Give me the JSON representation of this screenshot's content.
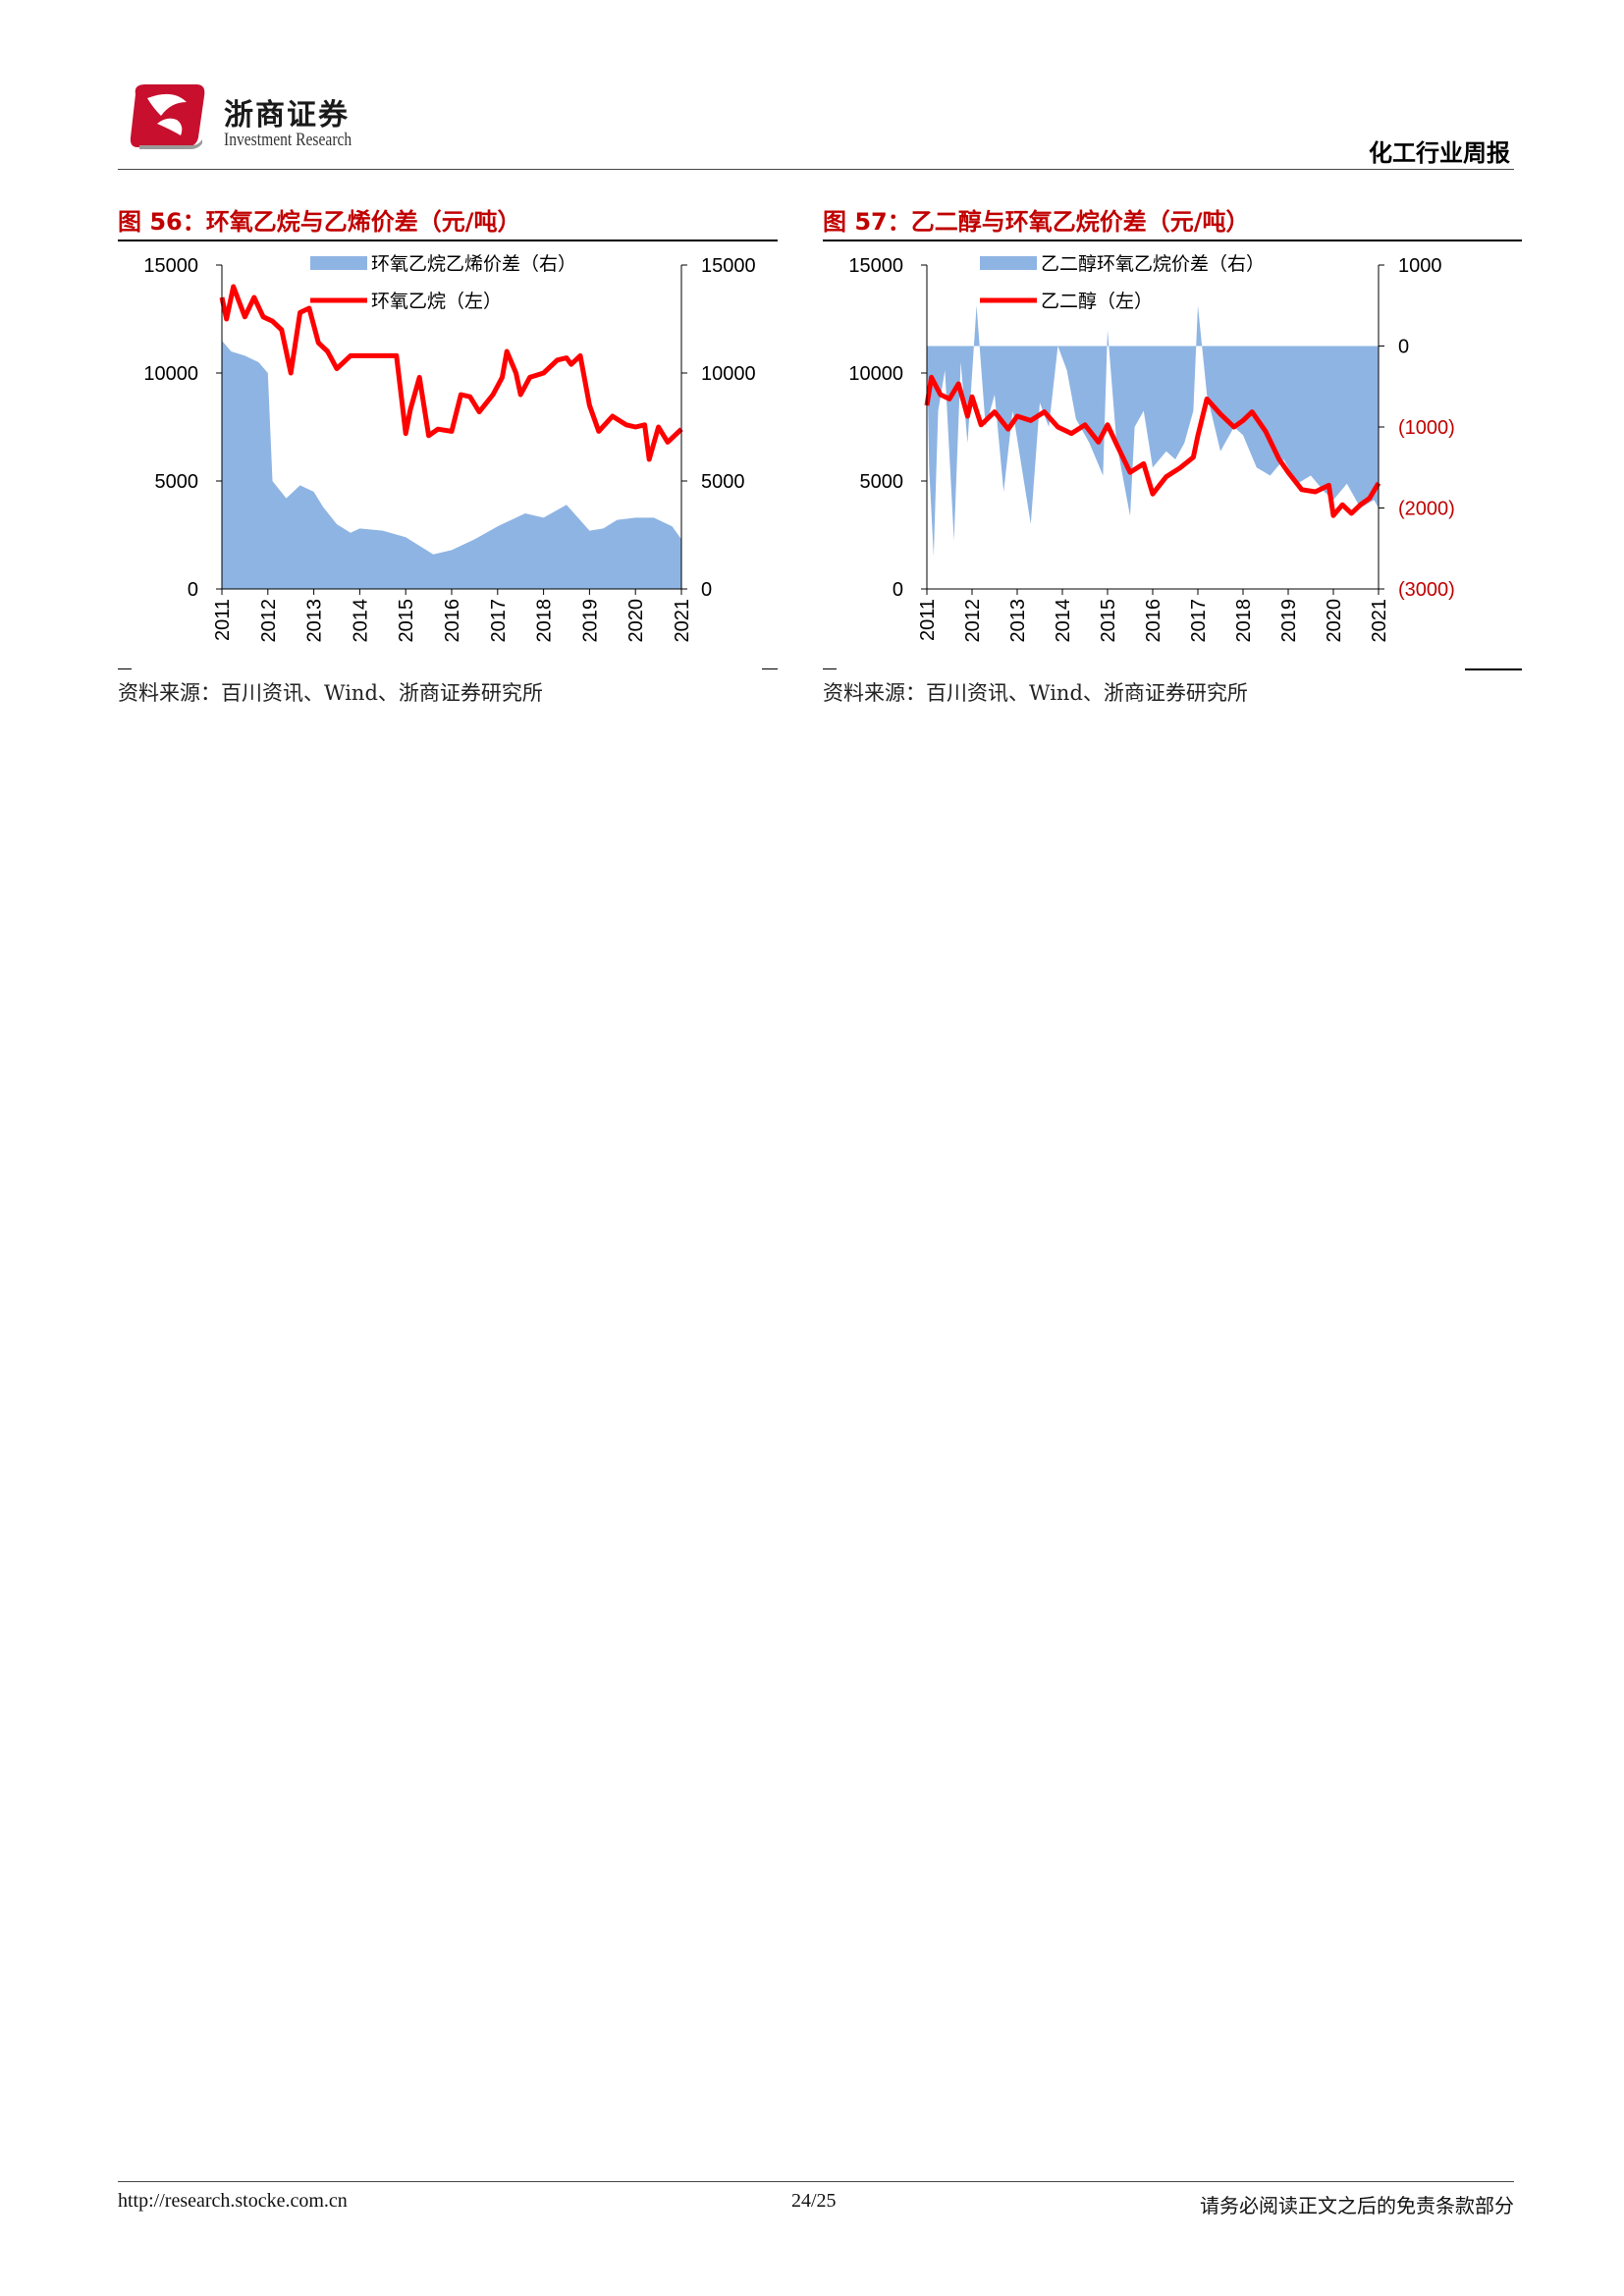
{
  "header": {
    "brand_cn": "浙商证券",
    "brand_en": "Investment Research",
    "report_type": "化工行业周报",
    "logo_color": "#c8102e"
  },
  "figures": [
    {
      "title": "图 56：环氧乙烷与乙烯价差（元/吨）",
      "source": "资料来源：百川资讯、Wind、浙商证券研究所",
      "chart_data": {
        "type": "area+line",
        "x_ticks": [
          "2011",
          "2012",
          "2013",
          "2014",
          "2015",
          "2016",
          "2017",
          "2018",
          "2019",
          "2020",
          "2021"
        ],
        "left_axis": {
          "ticks": [
            "15000",
            "10000",
            "5000",
            "0"
          ],
          "ylim": [
            0,
            15000
          ]
        },
        "right_axis": {
          "ticks": [
            "15000",
            "10000",
            "5000",
            "0"
          ],
          "ylim": [
            0,
            15000
          ]
        },
        "legend_position": "top-center",
        "series": [
          {
            "name": "环氧乙烷乙烯价差（右）",
            "kind": "area",
            "axis": "right",
            "color": "#8eb4e3",
            "x": [
              2011.0,
              2011.2,
              2011.5,
              2011.8,
              2012.0,
              2012.1,
              2012.4,
              2012.7,
              2013.0,
              2013.2,
              2013.5,
              2013.8,
              2014.0,
              2014.5,
              2015.0,
              2015.3,
              2015.6,
              2016.0,
              2016.5,
              2017.0,
              2017.3,
              2017.6,
              2018.0,
              2018.5,
              2019.0,
              2019.3,
              2019.6,
              2020.0,
              2020.4,
              2020.8,
              2021.0
            ],
            "values": [
              11500,
              11000,
              10800,
              10500,
              10000,
              5000,
              4200,
              4800,
              4500,
              3800,
              3000,
              2600,
              2800,
              2700,
              2400,
              2000,
              1600,
              1800,
              2300,
              2900,
              3200,
              3500,
              3300,
              3900,
              2700,
              2800,
              3200,
              3300,
              3300,
              2900,
              2300
            ]
          },
          {
            "name": "环氧乙烷（左）",
            "kind": "line",
            "axis": "left",
            "color": "#ff0000",
            "x": [
              2011.0,
              2011.1,
              2011.25,
              2011.5,
              2011.7,
              2011.9,
              2012.1,
              2012.3,
              2012.5,
              2012.7,
              2012.9,
              2013.1,
              2013.3,
              2013.5,
              2013.8,
              2014.1,
              2014.4,
              2014.8,
              2015.0,
              2015.1,
              2015.3,
              2015.5,
              2015.7,
              2016.0,
              2016.2,
              2016.4,
              2016.6,
              2016.9,
              2017.1,
              2017.2,
              2017.4,
              2017.5,
              2017.7,
              2018.0,
              2018.3,
              2018.5,
              2018.6,
              2018.8,
              2019.0,
              2019.2,
              2019.5,
              2019.8,
              2020.0,
              2020.2,
              2020.3,
              2020.5,
              2020.7,
              2021.0
            ],
            "values": [
              13500,
              12500,
              14000,
              12600,
              13500,
              12600,
              12400,
              12000,
              10000,
              12800,
              13000,
              11400,
              11000,
              10200,
              10800,
              10800,
              10800,
              10800,
              7200,
              8300,
              9800,
              7100,
              7400,
              7300,
              9000,
              8900,
              8200,
              9000,
              9800,
              11000,
              10000,
              9000,
              9800,
              10000,
              10600,
              10700,
              10400,
              10800,
              8500,
              7300,
              8000,
              7600,
              7500,
              7600,
              6000,
              7500,
              6800,
              7400
            ]
          }
        ]
      }
    },
    {
      "title": "图 57：乙二醇与环氧乙烷价差（元/吨）",
      "source": "资料来源：百川资讯、Wind、浙商证券研究所",
      "chart_data": {
        "type": "area+line",
        "x_ticks": [
          "2011",
          "2012",
          "2013",
          "2014",
          "2015",
          "2016",
          "2017",
          "2018",
          "2019",
          "2020",
          "2021"
        ],
        "left_axis": {
          "ticks": [
            "15000",
            "10000",
            "5000",
            "0"
          ],
          "ylim": [
            0,
            15000
          ]
        },
        "right_axis": {
          "ticks": [
            "1000",
            "0",
            "(1000)",
            "(2000)",
            "(3000)"
          ],
          "ylim": [
            -3000,
            1000
          ],
          "negative_color": "#c00000"
        },
        "legend_position": "top-center",
        "series": [
          {
            "name": "乙二醇环氧乙烷价差（右）",
            "kind": "area",
            "axis": "right",
            "color": "#8eb4e3",
            "x": [
              2011.0,
              2011.05,
              2011.15,
              2011.25,
              2011.4,
              2011.6,
              2011.75,
              2011.9,
              2012.1,
              2012.3,
              2012.5,
              2012.7,
              2012.9,
              2013.1,
              2013.3,
              2013.5,
              2013.7,
              2013.9,
              2014.1,
              2014.3,
              2014.6,
              2014.9,
              2015.0,
              2015.2,
              2015.5,
              2015.6,
              2015.8,
              2016.0,
              2016.3,
              2016.5,
              2016.7,
              2016.9,
              2017.0,
              2017.2,
              2017.5,
              2017.8,
              2018.0,
              2018.3,
              2018.6,
              2018.9,
              2019.2,
              2019.5,
              2019.8,
              2020.0,
              2020.3,
              2020.6,
              2020.9,
              2021.0
            ],
            "values": [
              0,
              -1500,
              -2600,
              -800,
              -300,
              -2400,
              -200,
              -1200,
              500,
              -1000,
              -600,
              -1800,
              -800,
              -1500,
              -2200,
              -700,
              -1000,
              0,
              -300,
              -900,
              -1200,
              -1600,
              200,
              -1200,
              -2100,
              -1000,
              -800,
              -1500,
              -1300,
              -1400,
              -1200,
              -800,
              500,
              -600,
              -1300,
              -1000,
              -1100,
              -1500,
              -1600,
              -1400,
              -1700,
              -1600,
              -1800,
              -1900,
              -1700,
              -2000,
              -1900,
              -2000
            ]
          },
          {
            "name": "乙二醇（左）",
            "kind": "line",
            "axis": "left",
            "color": "#ff0000",
            "x": [
              2011.0,
              2011.1,
              2011.3,
              2011.5,
              2011.7,
              2011.9,
              2012.0,
              2012.2,
              2012.5,
              2012.8,
              2013.0,
              2013.3,
              2013.6,
              2013.9,
              2014.2,
              2014.5,
              2014.8,
              2015.0,
              2015.2,
              2015.5,
              2015.8,
              2016.0,
              2016.3,
              2016.6,
              2016.9,
              2017.0,
              2017.2,
              2017.5,
              2017.8,
              2018.0,
              2018.2,
              2018.5,
              2018.8,
              2019.0,
              2019.3,
              2019.6,
              2019.9,
              2020.0,
              2020.2,
              2020.4,
              2020.6,
              2020.8,
              2021.0
            ],
            "values": [
              8500,
              9800,
              9000,
              8800,
              9500,
              8000,
              8900,
              7600,
              8200,
              7400,
              8000,
              7800,
              8200,
              7500,
              7200,
              7600,
              6800,
              7600,
              6700,
              5400,
              5800,
              4400,
              5200,
              5600,
              6100,
              7100,
              8800,
              8100,
              7500,
              7800,
              8200,
              7300,
              6000,
              5400,
              4600,
              4500,
              4800,
              3400,
              3900,
              3500,
              3900,
              4200,
              4900
            ]
          }
        ]
      }
    }
  ],
  "footer": {
    "url": "http://research.stocke.com.cn",
    "page": "24/25",
    "disclaimer": "请务必阅读正文之后的免责条款部分"
  }
}
